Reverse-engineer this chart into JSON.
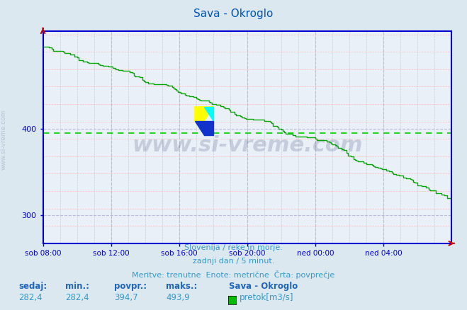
{
  "title": "Sava - Okroglo",
  "bg_color": "#dce8f0",
  "plot_bg_color": "#eaf0f8",
  "line_color": "#00aa00",
  "avg_line_color": "#00cc00",
  "axis_color": "#0000cc",
  "title_color": "#0055bb",
  "text_color": "#3399cc",
  "label_color": "#2266bb",
  "min_val": 282.4,
  "max_val": 493.9,
  "avg_val": 394.7,
  "current_val": 282.4,
  "ylabel_left": "www.si-vreme.com",
  "x_ticks": [
    "sob 08:00",
    "sob 12:00",
    "sob 16:00",
    "sob 20:00",
    "ned 00:00",
    "ned 04:00"
  ],
  "x_tick_positions": [
    0,
    48,
    96,
    144,
    192,
    240
  ],
  "total_points": 289,
  "ylim_min": 268,
  "ylim_max": 512,
  "yticks": [
    300,
    400
  ],
  "footer_line1": "Slovenija / reke in morje.",
  "footer_line2": "zadnji dan / 5 minut.",
  "footer_line3": "Meritve: trenutne  Enote: metrične  Črta: povprečje",
  "legend_title": "Sava - Okroglo",
  "legend_label": "pretok[m3/s]",
  "legend_color": "#00bb00",
  "stat_labels": [
    "sedaj:",
    "min.:",
    "povpr.:",
    "maks.:"
  ],
  "stat_values": [
    "282,4",
    "282,4",
    "394,7",
    "493,9"
  ],
  "watermark": "www.si-vreme.com",
  "minor_grid_color": "#ffbbbb",
  "major_grid_color": "#bbbbdd",
  "arrow_color": "#cc0000"
}
